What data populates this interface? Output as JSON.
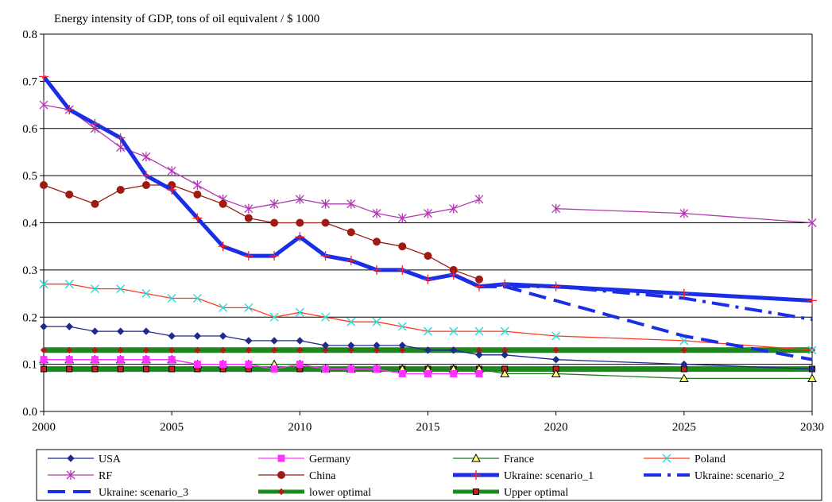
{
  "chart_data": {
    "type": "line",
    "title": "Energy intensity of GDP, tons of oil equivalent / $ 1000",
    "xlim": [
      2000,
      2030
    ],
    "ylim": [
      0,
      0.8
    ],
    "x_ticks": [
      2000,
      2005,
      2010,
      2015,
      2020,
      2025,
      2030
    ],
    "y_ticks": [
      0.0,
      0.1,
      0.2,
      0.3,
      0.4,
      0.5,
      0.6,
      0.7,
      0.8
    ],
    "y_tick_labels": [
      "0.0",
      "0.1",
      "0.2",
      "0.3",
      "0.4",
      "0.5",
      "0.6",
      "0.7",
      "0.8"
    ],
    "grid": "horizontal",
    "legend_position": "bottom",
    "series": [
      {
        "name": "USA",
        "color": "#1f2a8a",
        "marker": "diamond",
        "points": [
          [
            2000,
            0.18
          ],
          [
            2001,
            0.18
          ],
          [
            2002,
            0.17
          ],
          [
            2003,
            0.17
          ],
          [
            2004,
            0.17
          ],
          [
            2005,
            0.16
          ],
          [
            2006,
            0.16
          ],
          [
            2007,
            0.16
          ],
          [
            2008,
            0.15
          ],
          [
            2009,
            0.15
          ],
          [
            2010,
            0.15
          ],
          [
            2011,
            0.14
          ],
          [
            2012,
            0.14
          ],
          [
            2013,
            0.14
          ],
          [
            2014,
            0.14
          ],
          [
            2015,
            0.13
          ],
          [
            2016,
            0.13
          ],
          [
            2017,
            0.12
          ],
          [
            2018,
            0.12
          ],
          [
            2020,
            0.11
          ],
          [
            2025,
            0.1
          ],
          [
            2030,
            0.09
          ]
        ]
      },
      {
        "name": "Germany",
        "color": "#ff33ff",
        "marker": "square",
        "points": [
          [
            2000,
            0.11
          ],
          [
            2001,
            0.11
          ],
          [
            2002,
            0.11
          ],
          [
            2003,
            0.11
          ],
          [
            2004,
            0.11
          ],
          [
            2005,
            0.11
          ],
          [
            2006,
            0.1
          ],
          [
            2007,
            0.1
          ],
          [
            2008,
            0.1
          ],
          [
            2009,
            0.09
          ],
          [
            2010,
            0.1
          ],
          [
            2011,
            0.09
          ],
          [
            2012,
            0.09
          ],
          [
            2013,
            0.09
          ],
          [
            2014,
            0.08
          ],
          [
            2015,
            0.08
          ],
          [
            2016,
            0.08
          ],
          [
            2017,
            0.08
          ]
        ]
      },
      {
        "name": "France",
        "color": "#1a7a1a",
        "marker": "triangle",
        "points": [
          [
            2000,
            0.11
          ],
          [
            2001,
            0.11
          ],
          [
            2002,
            0.11
          ],
          [
            2003,
            0.11
          ],
          [
            2004,
            0.11
          ],
          [
            2005,
            0.11
          ],
          [
            2006,
            0.1
          ],
          [
            2007,
            0.1
          ],
          [
            2008,
            0.1
          ],
          [
            2009,
            0.1
          ],
          [
            2010,
            0.1
          ],
          [
            2011,
            0.09
          ],
          [
            2012,
            0.09
          ],
          [
            2013,
            0.09
          ],
          [
            2014,
            0.09
          ],
          [
            2015,
            0.09
          ],
          [
            2016,
            0.09
          ],
          [
            2017,
            0.09
          ],
          [
            2018,
            0.08
          ],
          [
            2020,
            0.08
          ],
          [
            2025,
            0.07
          ],
          [
            2030,
            0.07
          ]
        ]
      },
      {
        "name": "Poland",
        "color": "#ff3b1f",
        "marker": "star",
        "points": [
          [
            2000,
            0.27
          ],
          [
            2001,
            0.27
          ],
          [
            2002,
            0.26
          ],
          [
            2003,
            0.26
          ],
          [
            2004,
            0.25
          ],
          [
            2005,
            0.24
          ],
          [
            2006,
            0.24
          ],
          [
            2007,
            0.22
          ],
          [
            2008,
            0.22
          ],
          [
            2009,
            0.2
          ],
          [
            2010,
            0.21
          ],
          [
            2011,
            0.2
          ],
          [
            2012,
            0.19
          ],
          [
            2013,
            0.19
          ],
          [
            2014,
            0.18
          ],
          [
            2015,
            0.17
          ],
          [
            2016,
            0.17
          ],
          [
            2017,
            0.17
          ],
          [
            2018,
            0.17
          ],
          [
            2020,
            0.16
          ],
          [
            2025,
            0.15
          ],
          [
            2030,
            0.13
          ]
        ]
      },
      {
        "name": "RF",
        "color": "#b13ab1",
        "marker": "asterisk",
        "points": [
          [
            2000,
            0.65
          ],
          [
            2001,
            0.64
          ],
          [
            2002,
            0.6
          ],
          [
            2003,
            0.56
          ],
          [
            2004,
            0.54
          ],
          [
            2005,
            0.51
          ],
          [
            2006,
            0.48
          ],
          [
            2007,
            0.45
          ],
          [
            2008,
            0.43
          ],
          [
            2009,
            0.44
          ],
          [
            2010,
            0.45
          ],
          [
            2011,
            0.44
          ],
          [
            2012,
            0.44
          ],
          [
            2013,
            0.42
          ],
          [
            2014,
            0.41
          ],
          [
            2015,
            0.42
          ],
          [
            2016,
            0.43
          ],
          [
            2017,
            0.45
          ],
          [
            2020,
            0.43
          ],
          [
            2025,
            0.42
          ],
          [
            2030,
            0.4
          ]
        ],
        "gap_after_x": 2017
      },
      {
        "name": "China",
        "color": "#9e1b12",
        "marker": "circle",
        "points": [
          [
            2000,
            0.48
          ],
          [
            2001,
            0.46
          ],
          [
            2002,
            0.44
          ],
          [
            2003,
            0.47
          ],
          [
            2004,
            0.48
          ],
          [
            2005,
            0.48
          ],
          [
            2006,
            0.46
          ],
          [
            2007,
            0.44
          ],
          [
            2008,
            0.41
          ],
          [
            2009,
            0.4
          ],
          [
            2010,
            0.4
          ],
          [
            2011,
            0.4
          ],
          [
            2012,
            0.38
          ],
          [
            2013,
            0.36
          ],
          [
            2014,
            0.35
          ],
          [
            2015,
            0.33
          ],
          [
            2016,
            0.3
          ],
          [
            2017,
            0.28
          ]
        ]
      },
      {
        "name": "Ukraine: scenario_1",
        "color": "#1a2ee6",
        "marker": "plus",
        "points": [
          [
            2000,
            0.71
          ],
          [
            2001,
            0.64
          ],
          [
            2002,
            0.61
          ],
          [
            2003,
            0.58
          ],
          [
            2004,
            0.5
          ],
          [
            2005,
            0.47
          ],
          [
            2006,
            0.41
          ],
          [
            2007,
            0.35
          ],
          [
            2008,
            0.33
          ],
          [
            2009,
            0.33
          ],
          [
            2010,
            0.37
          ],
          [
            2011,
            0.33
          ],
          [
            2012,
            0.32
          ],
          [
            2013,
            0.3
          ],
          [
            2014,
            0.3
          ],
          [
            2015,
            0.28
          ],
          [
            2016,
            0.29
          ],
          [
            2017,
            0.265
          ],
          [
            2018,
            0.27
          ],
          [
            2020,
            0.265
          ],
          [
            2025,
            0.25
          ],
          [
            2030,
            0.235
          ]
        ]
      },
      {
        "name": "Ukraine: scenario_2",
        "color": "#1a2ee6",
        "marker": "none",
        "points": [
          [
            2017,
            0.265
          ],
          [
            2018,
            0.265
          ],
          [
            2020,
            0.265
          ],
          [
            2025,
            0.24
          ],
          [
            2030,
            0.195
          ]
        ]
      },
      {
        "name": "Ukraine: scenario_3",
        "color": "#1a2ee6",
        "marker": "none",
        "points": [
          [
            2017,
            0.265
          ],
          [
            2018,
            0.265
          ],
          [
            2020,
            0.235
          ],
          [
            2025,
            0.16
          ],
          [
            2030,
            0.11
          ]
        ]
      },
      {
        "name": "lower optimal",
        "color": "#1a8a1a",
        "marker": "diamond-red",
        "points": [
          [
            2000,
            0.13
          ],
          [
            2001,
            0.13
          ],
          [
            2002,
            0.13
          ],
          [
            2003,
            0.13
          ],
          [
            2004,
            0.13
          ],
          [
            2005,
            0.13
          ],
          [
            2006,
            0.13
          ],
          [
            2007,
            0.13
          ],
          [
            2008,
            0.13
          ],
          [
            2009,
            0.13
          ],
          [
            2010,
            0.13
          ],
          [
            2011,
            0.13
          ],
          [
            2012,
            0.13
          ],
          [
            2013,
            0.13
          ],
          [
            2014,
            0.13
          ],
          [
            2015,
            0.13
          ],
          [
            2016,
            0.13
          ],
          [
            2017,
            0.13
          ],
          [
            2018,
            0.13
          ],
          [
            2020,
            0.13
          ],
          [
            2025,
            0.13
          ],
          [
            2030,
            0.13
          ]
        ]
      },
      {
        "name": "Upper optimal",
        "color": "#1a8a1a",
        "marker": "square-red",
        "points": [
          [
            2000,
            0.09
          ],
          [
            2001,
            0.09
          ],
          [
            2002,
            0.09
          ],
          [
            2003,
            0.09
          ],
          [
            2004,
            0.09
          ],
          [
            2005,
            0.09
          ],
          [
            2006,
            0.09
          ],
          [
            2007,
            0.09
          ],
          [
            2008,
            0.09
          ],
          [
            2009,
            0.09
          ],
          [
            2010,
            0.09
          ],
          [
            2011,
            0.09
          ],
          [
            2012,
            0.09
          ],
          [
            2013,
            0.09
          ],
          [
            2014,
            0.09
          ],
          [
            2015,
            0.09
          ],
          [
            2016,
            0.09
          ],
          [
            2017,
            0.09
          ],
          [
            2018,
            0.09
          ],
          [
            2020,
            0.09
          ],
          [
            2025,
            0.09
          ],
          [
            2030,
            0.09
          ]
        ]
      }
    ]
  }
}
